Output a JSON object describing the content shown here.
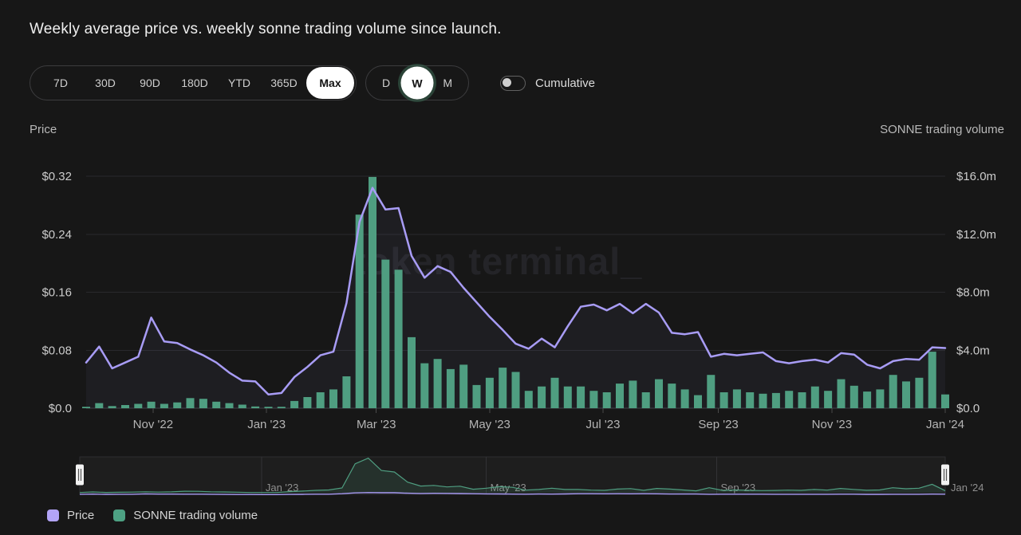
{
  "header": {
    "title": "Weekly average price vs. weekly sonne trading volume since launch."
  },
  "controls": {
    "ranges": [
      "7D",
      "30D",
      "90D",
      "180D",
      "YTD",
      "365D",
      "Max"
    ],
    "selected_range": "Max",
    "granularities": [
      "D",
      "W",
      "M"
    ],
    "selected_granularity": "W",
    "cumulative_label": "Cumulative",
    "cumulative_on": false
  },
  "axes": {
    "left_title": "Price",
    "right_title": "SONNE trading volume",
    "left_labels": [
      "$0.32",
      "$0.24",
      "$0.16",
      "$0.08",
      "$0.0"
    ],
    "right_labels": [
      "$16.0m",
      "$12.0m",
      "$8.0m",
      "$4.0m",
      "$0.0"
    ]
  },
  "watermark": {
    "text": "token terminal_"
  },
  "legend": {
    "items": [
      {
        "label": "Price",
        "color": "#b2a4f7"
      },
      {
        "label": "SONNE trading volume",
        "color": "#4da183"
      }
    ]
  },
  "chart_data": {
    "type": "bar",
    "note": "dual-axis combo: line (price, left axis) + bars (volume, right axis), weekly",
    "x": [
      "2022-09-26",
      "2022-10-03",
      "2022-10-10",
      "2022-10-17",
      "2022-10-24",
      "2022-10-31",
      "2022-11-07",
      "2022-11-14",
      "2022-11-21",
      "2022-11-28",
      "2022-12-05",
      "2022-12-12",
      "2022-12-19",
      "2022-12-26",
      "2023-01-02",
      "2023-01-09",
      "2023-01-16",
      "2023-01-23",
      "2023-01-30",
      "2023-02-06",
      "2023-02-13",
      "2023-02-20",
      "2023-02-27",
      "2023-03-06",
      "2023-03-13",
      "2023-03-20",
      "2023-03-27",
      "2023-04-03",
      "2023-04-10",
      "2023-04-17",
      "2023-04-24",
      "2023-05-01",
      "2023-05-08",
      "2023-05-15",
      "2023-05-22",
      "2023-05-29",
      "2023-06-05",
      "2023-06-12",
      "2023-06-19",
      "2023-06-26",
      "2023-07-03",
      "2023-07-10",
      "2023-07-17",
      "2023-07-24",
      "2023-07-31",
      "2023-08-07",
      "2023-08-14",
      "2023-08-21",
      "2023-08-28",
      "2023-09-04",
      "2023-09-11",
      "2023-09-18",
      "2023-09-25",
      "2023-10-02",
      "2023-10-09",
      "2023-10-16",
      "2023-10-23",
      "2023-10-30",
      "2023-11-06",
      "2023-11-13",
      "2023-11-20",
      "2023-11-27",
      "2023-12-04",
      "2023-12-11",
      "2023-12-18",
      "2023-12-25",
      "2024-01-01"
    ],
    "series": [
      {
        "name": "Price",
        "type": "line",
        "axis": "left",
        "color": "#a89cf5",
        "unit": "$",
        "values": [
          0.063,
          0.085,
          0.055,
          0.063,
          0.071,
          0.125,
          0.092,
          0.09,
          0.081,
          0.073,
          0.063,
          0.049,
          0.038,
          0.037,
          0.019,
          0.021,
          0.043,
          0.057,
          0.073,
          0.078,
          0.145,
          0.257,
          0.304,
          0.274,
          0.276,
          0.21,
          0.18,
          0.196,
          0.188,
          0.166,
          0.146,
          0.126,
          0.108,
          0.089,
          0.082,
          0.096,
          0.084,
          0.113,
          0.14,
          0.143,
          0.135,
          0.144,
          0.131,
          0.144,
          0.132,
          0.104,
          0.102,
          0.105,
          0.071,
          0.075,
          0.073,
          0.075,
          0.077,
          0.065,
          0.062,
          0.065,
          0.067,
          0.063,
          0.076,
          0.074,
          0.06,
          0.055,
          0.065,
          0.068,
          0.067,
          0.084,
          0.083
        ]
      },
      {
        "name": "SONNE trading volume",
        "type": "bar",
        "axis": "right",
        "color": "#4f9e81",
        "unit": "$m",
        "values": [
          0.1,
          0.35,
          0.15,
          0.22,
          0.3,
          0.45,
          0.3,
          0.4,
          0.7,
          0.65,
          0.45,
          0.35,
          0.25,
          0.12,
          0.1,
          0.1,
          0.5,
          0.77,
          1.1,
          1.3,
          2.2,
          13.35,
          15.95,
          10.25,
          9.55,
          4.9,
          3.1,
          3.4,
          2.7,
          3.0,
          1.6,
          2.1,
          2.8,
          2.5,
          1.2,
          1.5,
          2.1,
          1.5,
          1.5,
          1.2,
          1.1,
          1.7,
          1.9,
          1.1,
          2.0,
          1.7,
          1.3,
          0.9,
          2.3,
          1.1,
          1.3,
          1.1,
          1.0,
          1.05,
          1.2,
          1.1,
          1.5,
          1.2,
          2.0,
          1.55,
          1.15,
          1.3,
          2.3,
          1.85,
          2.1,
          3.9,
          0.95
        ]
      }
    ],
    "left_axis": {
      "title": "Price",
      "range": [
        0,
        0.32
      ],
      "tick_values": [
        0.32,
        0.24,
        0.16,
        0.08,
        0.0
      ]
    },
    "right_axis": {
      "title": "SONNE trading volume",
      "range": [
        0,
        16000000
      ],
      "tick_values": [
        16000000,
        12000000,
        8000000,
        4000000,
        0
      ]
    },
    "x_ticks": [
      {
        "label": "Nov '22",
        "week_index": 5.14
      },
      {
        "label": "Jan '23",
        "week_index": 13.86
      },
      {
        "label": "Mar '23",
        "week_index": 22.29
      },
      {
        "label": "May '23",
        "week_index": 31.0
      },
      {
        "label": "Jul '23",
        "week_index": 39.71
      },
      {
        "label": "Sep '23",
        "week_index": 48.57
      },
      {
        "label": "Nov '23",
        "week_index": 57.29
      },
      {
        "label": "Jan '24",
        "week_index": 66.0
      }
    ],
    "grid": true,
    "legend_position": "bottom-left"
  },
  "minimap": {
    "labels": [
      {
        "label": "Jan '23",
        "week_index": 13.86
      },
      {
        "label": "May '23",
        "week_index": 31.0
      },
      {
        "label": "Sep '23",
        "week_index": 48.57
      },
      {
        "label": "Jan '24",
        "week_index": 66.0
      }
    ]
  }
}
